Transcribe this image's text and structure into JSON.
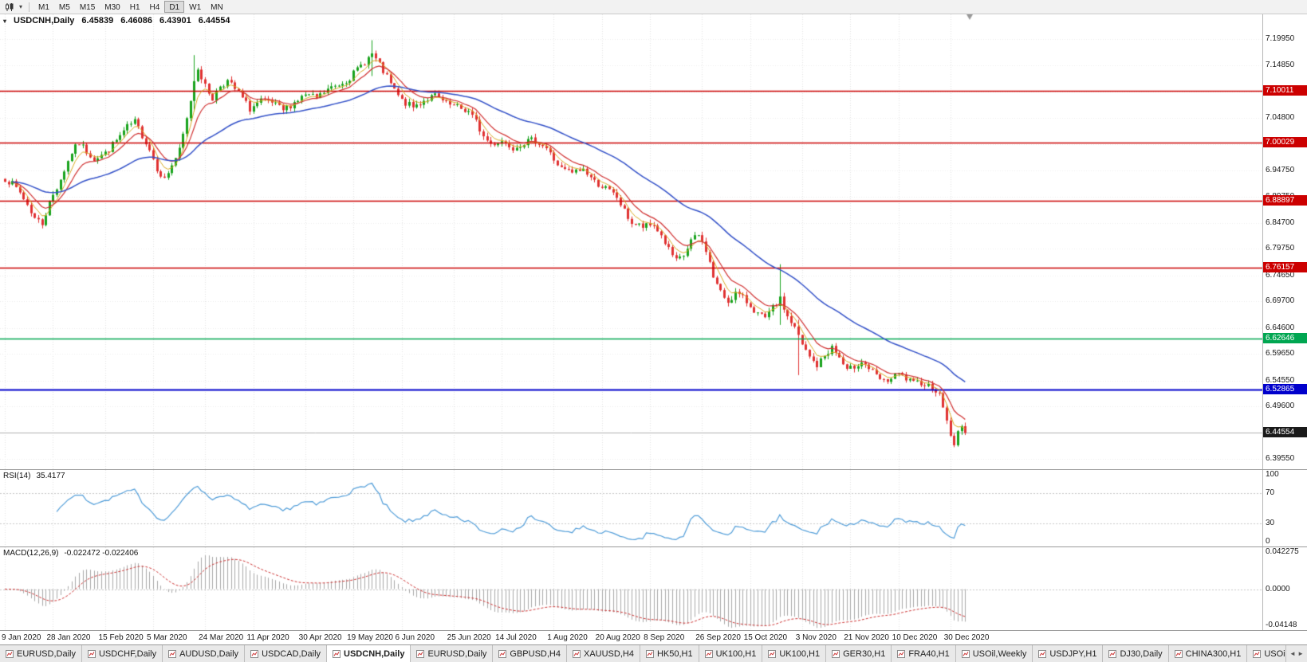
{
  "colors": {
    "up": "#18a31c",
    "down": "#e03232",
    "ma_yellow": "#d8aa22",
    "ma_red": "#d03030",
    "ma_blue": "#3351c8",
    "rsi_line": "#4f9cd8",
    "macd_hist": "#a8a8a8",
    "macd_signal": "#cc3333",
    "grid_h": "#ececec",
    "grid_v": "#e2e2e2",
    "level_red": "#cc0000",
    "level_green": "#00a651",
    "level_blue": "#0000cc",
    "current_line": "#b0b0b0",
    "current_label_bg": "#1a1a1a"
  },
  "toolbar": {
    "timeframes": [
      "M1",
      "M5",
      "M15",
      "M30",
      "H1",
      "H4",
      "D1",
      "W1",
      "MN"
    ],
    "active_timeframe": "D1"
  },
  "title": {
    "symbol": "USDCNH,Daily",
    "open": "6.45839",
    "high": "6.46086",
    "low": "6.43901",
    "close": "6.44554"
  },
  "price_axis": {
    "y_min": 6.376,
    "y_max": 7.246,
    "ticks": [
      7.1995,
      7.1485,
      7.0985,
      7.048,
      6.9975,
      6.9475,
      6.8975,
      6.847,
      6.7975,
      6.7465,
      6.697,
      6.646,
      6.5965,
      6.5455,
      6.496,
      6.4455,
      6.3955
    ]
  },
  "levels": [
    {
      "value": 7.10011,
      "label": "7.10011",
      "color_key": "level_red",
      "width": 1.6
    },
    {
      "value": 7.00029,
      "label": "7.00029",
      "color_key": "level_red",
      "width": 1.6
    },
    {
      "value": 6.88897,
      "label": "6.88897",
      "color_key": "level_red",
      "width": 1.6
    },
    {
      "value": 6.76157,
      "label": "6.76157",
      "color_key": "level_red",
      "width": 1.6
    },
    {
      "value": 6.62646,
      "label": "6.62646",
      "color_key": "level_green",
      "width": 1.6
    },
    {
      "value": 6.52865,
      "label": "6.52865",
      "color_key": "level_blue",
      "width": 2
    }
  ],
  "current_price": {
    "value": 6.44554,
    "label": "6.44554"
  },
  "rsi_panel": {
    "name": "RSI(14)",
    "value": "35.4177",
    "period": 14,
    "y_min": 0,
    "y_max": 100,
    "ticks": [
      100,
      70,
      30,
      0
    ],
    "levels": [
      70,
      30
    ]
  },
  "macd_panel": {
    "name": "MACD(12,26,9)",
    "value": "-0.022472 -0.022406",
    "fast": 12,
    "slow": 26,
    "signal": 9,
    "y_min": -0.0445,
    "y_max": 0.0455,
    "ticks": [
      0.042275,
      0,
      -0.04148
    ],
    "tick_labels": [
      "0.042275",
      "0.0000",
      "-0.04148"
    ]
  },
  "time_axis": {
    "labels": [
      "9 Jan 2020",
      "28 Jan 2020",
      "15 Feb 2020",
      "5 Mar 2020",
      "24 Mar 2020",
      "11 Apr 2020",
      "30 Apr 2020",
      "19 May 2020",
      "6 Jun 2020",
      "25 Jun 2020",
      "14 Jul 2020",
      "1 Aug 2020",
      "20 Aug 2020",
      "8 Sep 2020",
      "26 Sep 2020",
      "15 Oct 2020",
      "3 Nov 2020",
      "21 Nov 2020",
      "10 Dec 2020",
      "30 Dec 2020"
    ],
    "indices": [
      0,
      13,
      27,
      40,
      54,
      67,
      81,
      94,
      107,
      121,
      134,
      148,
      161,
      174,
      188,
      201,
      215,
      228,
      241,
      255
    ]
  },
  "tabs": {
    "items": [
      "EURUSD,Daily",
      "USDCHF,Daily",
      "AUDUSD,Daily",
      "USDCAD,Daily",
      "USDCNH,Daily",
      "EURUSD,Daily",
      "GBPUSD,H4",
      "XAUUSD,H4",
      "HK50,H1",
      "UK100,H1",
      "UK100,H1",
      "GER30,H1",
      "FRA40,H1",
      "USOil,Weekly",
      "USDJPY,H1",
      "DJ30,Daily",
      "CHINA300,H1",
      "USOil,"
    ],
    "active_index": 4
  },
  "chart_data": {
    "type": "candlestick",
    "symbol": "USDCNH",
    "timeframe": "Daily",
    "count": 260,
    "x_start": 6,
    "x_step": 4.65,
    "body_width": 3,
    "noise": 0.0065,
    "wick": 0.0075,
    "seed": 7,
    "shift_marker_x": 1216,
    "last_close": 6.44554,
    "y_range": [
      6.376,
      7.246
    ],
    "ma_periods": {
      "yellow": 5,
      "red": 10,
      "blue": 40
    },
    "close_anchors": [
      [
        0,
        6.932
      ],
      [
        2,
        6.921
      ],
      [
        4,
        6.905
      ],
      [
        6,
        6.882
      ],
      [
        8,
        6.856
      ],
      [
        10,
        6.846
      ],
      [
        12,
        6.886
      ],
      [
        14,
        6.915
      ],
      [
        16,
        6.948
      ],
      [
        18,
        6.982
      ],
      [
        20,
        7.0
      ],
      [
        22,
        6.984
      ],
      [
        24,
        6.97
      ],
      [
        27,
        6.98
      ],
      [
        30,
        7.005
      ],
      [
        33,
        7.03
      ],
      [
        35,
        7.04
      ],
      [
        37,
        7.015
      ],
      [
        39,
        6.988
      ],
      [
        41,
        6.952
      ],
      [
        43,
        6.93
      ],
      [
        45,
        6.958
      ],
      [
        47,
        6.985
      ],
      [
        49,
        7.045
      ],
      [
        51,
        7.12
      ],
      [
        52,
        7.145
      ],
      [
        54,
        7.108
      ],
      [
        56,
        7.085
      ],
      [
        58,
        7.11
      ],
      [
        60,
        7.118
      ],
      [
        63,
        7.095
      ],
      [
        66,
        7.065
      ],
      [
        69,
        7.08
      ],
      [
        72,
        7.076
      ],
      [
        75,
        7.062
      ],
      [
        78,
        7.078
      ],
      [
        81,
        7.092
      ],
      [
        84,
        7.085
      ],
      [
        87,
        7.102
      ],
      [
        90,
        7.112
      ],
      [
        93,
        7.125
      ],
      [
        96,
        7.148
      ],
      [
        99,
        7.17
      ],
      [
        101,
        7.148
      ],
      [
        103,
        7.125
      ],
      [
        105,
        7.1
      ],
      [
        107,
        7.08
      ],
      [
        110,
        7.068
      ],
      [
        113,
        7.082
      ],
      [
        116,
        7.09
      ],
      [
        119,
        7.074
      ],
      [
        122,
        7.068
      ],
      [
        125,
        7.06
      ],
      [
        127,
        7.04
      ],
      [
        129,
        7.012
      ],
      [
        131,
        6.998
      ],
      [
        134,
        7.004
      ],
      [
        137,
        6.992
      ],
      [
        140,
        7.001
      ],
      [
        143,
        7.006
      ],
      [
        146,
        6.99
      ],
      [
        148,
        6.968
      ],
      [
        150,
        6.95
      ],
      [
        153,
        6.943
      ],
      [
        156,
        6.95
      ],
      [
        159,
        6.926
      ],
      [
        162,
        6.913
      ],
      [
        165,
        6.896
      ],
      [
        167,
        6.869
      ],
      [
        169,
        6.847
      ],
      [
        172,
        6.839
      ],
      [
        175,
        6.843
      ],
      [
        177,
        6.823
      ],
      [
        179,
        6.796
      ],
      [
        181,
        6.773
      ],
      [
        183,
        6.784
      ],
      [
        185,
        6.813
      ],
      [
        187,
        6.823
      ],
      [
        189,
        6.796
      ],
      [
        191,
        6.744
      ],
      [
        193,
        6.714
      ],
      [
        195,
        6.697
      ],
      [
        197,
        6.713
      ],
      [
        199,
        6.703
      ],
      [
        201,
        6.689
      ],
      [
        203,
        6.673
      ],
      [
        205,
        6.663
      ],
      [
        207,
        6.684
      ],
      [
        209,
        6.7
      ],
      [
        211,
        6.668
      ],
      [
        213,
        6.646
      ],
      [
        215,
        6.613
      ],
      [
        217,
        6.59
      ],
      [
        219,
        6.574
      ],
      [
        221,
        6.593
      ],
      [
        223,
        6.609
      ],
      [
        225,
        6.589
      ],
      [
        227,
        6.563
      ],
      [
        229,
        6.573
      ],
      [
        231,
        6.583
      ],
      [
        233,
        6.569
      ],
      [
        235,
        6.553
      ],
      [
        237,
        6.543
      ],
      [
        239,
        6.549
      ],
      [
        241,
        6.558
      ],
      [
        243,
        6.548
      ],
      [
        245,
        6.539
      ],
      [
        247,
        6.543
      ],
      [
        249,
        6.536
      ],
      [
        251,
        6.528
      ],
      [
        252,
        6.516
      ],
      [
        253,
        6.497
      ],
      [
        254,
        6.468
      ],
      [
        255,
        6.443
      ],
      [
        256,
        6.418
      ],
      [
        257,
        6.446
      ],
      [
        258,
        6.464
      ],
      [
        259,
        6.4455
      ]
    ],
    "spikes": [
      {
        "i": 51,
        "h": 7.168,
        "l": 7.06
      },
      {
        "i": 99,
        "h": 7.1965,
        "l": 7.128
      },
      {
        "i": 209,
        "h": 6.768,
        "l": 6.652
      },
      {
        "i": 214,
        "h": 6.662,
        "l": 6.556
      }
    ]
  }
}
